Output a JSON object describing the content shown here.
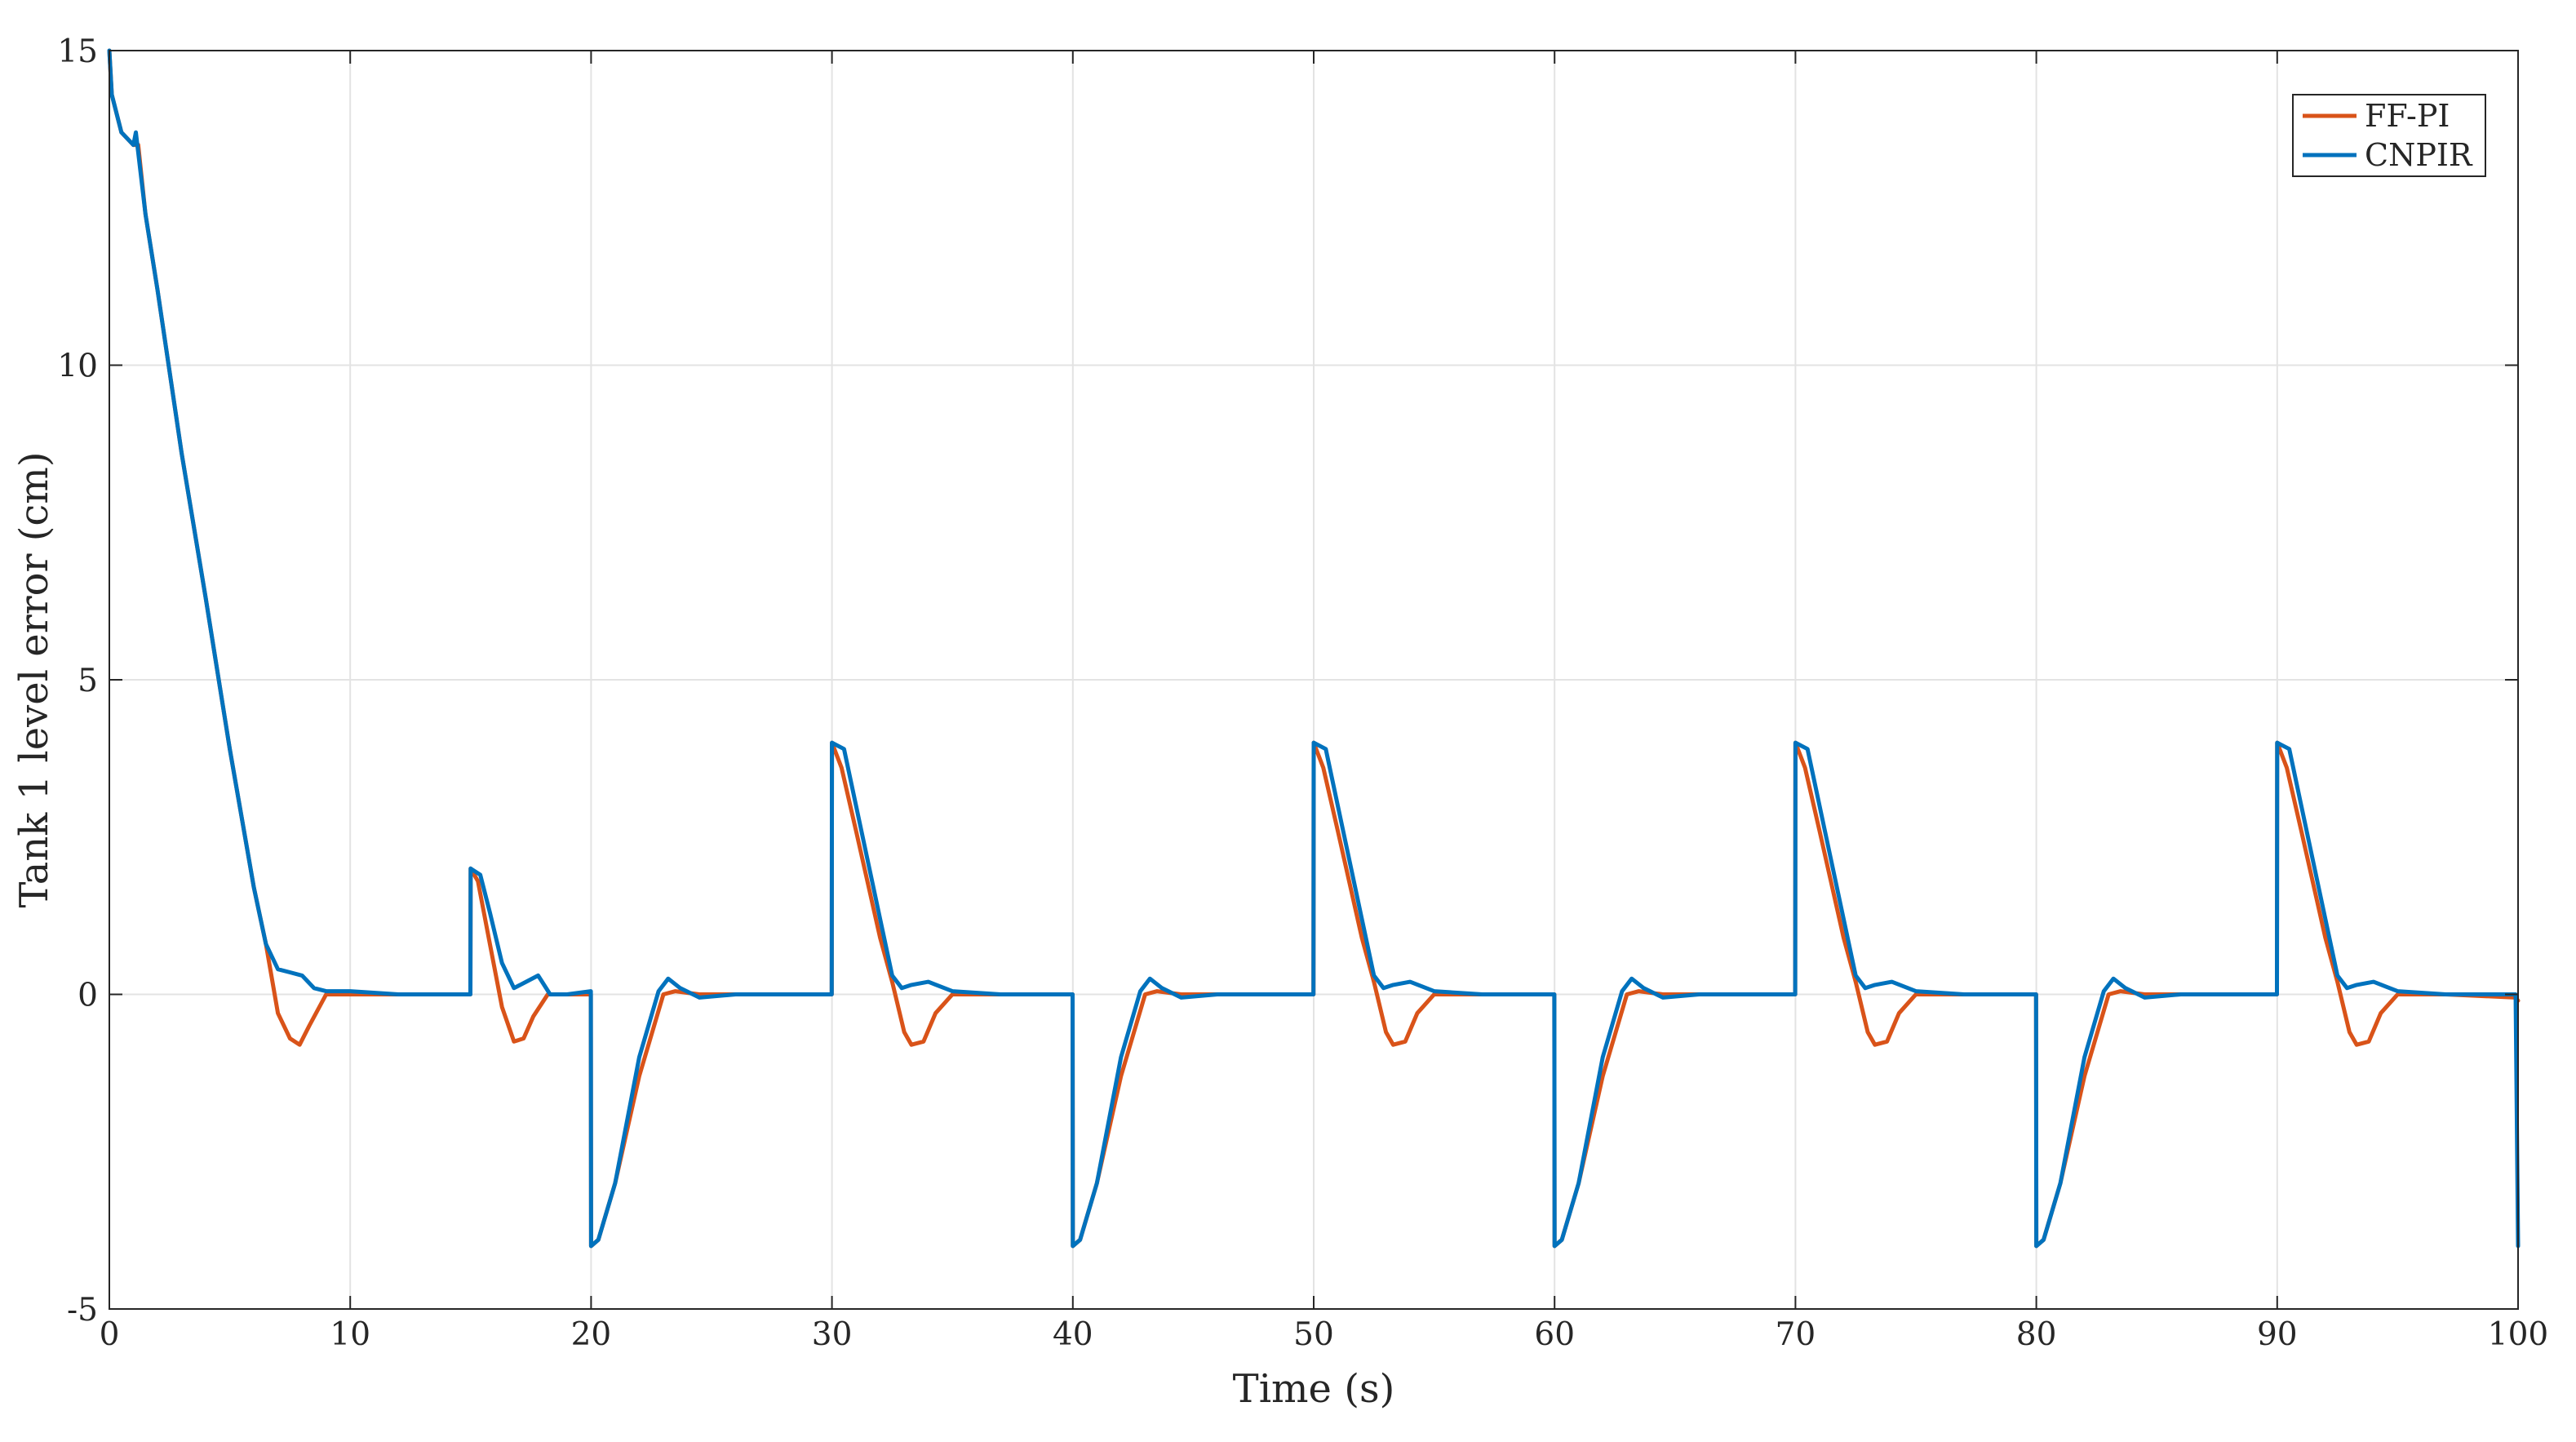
{
  "chart_data": {
    "type": "line",
    "title": "",
    "xlabel": "Time (s)",
    "ylabel": "Tank 1 level error (cm)",
    "xlim": [
      0,
      100
    ],
    "ylim": [
      -5,
      15
    ],
    "xticks": [
      0,
      10,
      20,
      30,
      40,
      50,
      60,
      70,
      80,
      90,
      100
    ],
    "yticks": [
      -5,
      0,
      5,
      10,
      15
    ],
    "grid": true,
    "legend_position": "top-right",
    "series": [
      {
        "name": "FF-PI",
        "color": "#d95319",
        "x": [
          0,
          0.1,
          0.5,
          1.0,
          1.2,
          1.5,
          2.0,
          3.0,
          4.0,
          5.0,
          6.0,
          6.5,
          7.0,
          7.5,
          7.9,
          8.3,
          9.0,
          10,
          12,
          14,
          14.99,
          15.0,
          15.3,
          15.8,
          16.3,
          16.8,
          17.2,
          17.6,
          18.2,
          19,
          19.99,
          20.0,
          20.3,
          21,
          22,
          23,
          23.5,
          24.5,
          26,
          28,
          29.99,
          30.0,
          30.4,
          31.0,
          32.0,
          32.5,
          33.0,
          33.3,
          33.8,
          34.3,
          35,
          37,
          39.99,
          40.0,
          40.3,
          41,
          42,
          43,
          43.5,
          44.5,
          46,
          48,
          49.99,
          50.0,
          50.4,
          51.0,
          52.0,
          52.5,
          53.0,
          53.3,
          53.8,
          54.3,
          55,
          57,
          59.99,
          60.0,
          60.3,
          61,
          62,
          63,
          63.5,
          64.5,
          66,
          68,
          69.99,
          70.0,
          70.4,
          71.0,
          72.0,
          72.5,
          73.0,
          73.3,
          73.8,
          74.3,
          75,
          77,
          79.99,
          80.0,
          80.3,
          81,
          82,
          83,
          83.5,
          84.5,
          86,
          88,
          89.99,
          90.0,
          90.4,
          91.0,
          92.0,
          92.5,
          93.0,
          93.3,
          93.8,
          94.3,
          95,
          97,
          99.9,
          100
        ],
        "y": [
          15,
          14.3,
          13.7,
          13.5,
          13.5,
          12.4,
          11.2,
          8.6,
          6.3,
          3.9,
          1.7,
          0.8,
          -0.3,
          -0.7,
          -0.8,
          -0.5,
          0.0,
          0.0,
          0.0,
          0.0,
          0.0,
          2.0,
          1.8,
          0.8,
          -0.2,
          -0.75,
          -0.7,
          -0.35,
          0.0,
          0.0,
          0.0,
          -4.0,
          -3.9,
          -3.0,
          -1.3,
          0.0,
          0.05,
          0.0,
          0.0,
          0.0,
          0.0,
          4.0,
          3.6,
          2.6,
          0.9,
          0.2,
          -0.6,
          -0.8,
          -0.75,
          -0.3,
          0.0,
          0.0,
          0.0,
          -4.0,
          -3.9,
          -3.0,
          -1.3,
          0.0,
          0.05,
          0.0,
          0.0,
          0.0,
          0.0,
          4.0,
          3.6,
          2.6,
          0.9,
          0.2,
          -0.6,
          -0.8,
          -0.75,
          -0.3,
          0.0,
          0.0,
          0.0,
          -4.0,
          -3.9,
          -3.0,
          -1.3,
          0.0,
          0.05,
          0.0,
          0.0,
          0.0,
          0.0,
          4.0,
          3.6,
          2.6,
          0.9,
          0.2,
          -0.6,
          -0.8,
          -0.75,
          -0.3,
          0.0,
          0.0,
          0.0,
          -4.0,
          -3.9,
          -3.0,
          -1.3,
          0.0,
          0.05,
          0.0,
          0.0,
          0.0,
          0.0,
          4.0,
          3.6,
          2.6,
          0.9,
          0.2,
          -0.6,
          -0.8,
          -0.75,
          -0.3,
          0.0,
          0.0,
          -0.05,
          -0.1
        ]
      },
      {
        "name": "CNPIR",
        "color": "#0072bd",
        "x": [
          0,
          0.1,
          0.5,
          1.0,
          1.1,
          1.5,
          2.0,
          3.0,
          4.0,
          5.0,
          6.0,
          6.5,
          7.0,
          7.5,
          8.0,
          8.5,
          9.0,
          10,
          12,
          14,
          14.99,
          15.0,
          15.4,
          15.8,
          16.3,
          16.8,
          17.3,
          17.8,
          18.3,
          19,
          19.99,
          20.0,
          20.3,
          21,
          22,
          22.8,
          23.2,
          23.7,
          24.5,
          26,
          28,
          29.99,
          30.0,
          30.5,
          31.0,
          32.0,
          32.5,
          32.9,
          33.3,
          34,
          35,
          37,
          39.99,
          40.0,
          40.3,
          41,
          42,
          42.8,
          43.2,
          43.7,
          44.5,
          46,
          48,
          49.99,
          50.0,
          50.5,
          51.0,
          52.0,
          52.5,
          52.9,
          53.3,
          54,
          55,
          57,
          59.99,
          60.0,
          60.3,
          61,
          62,
          62.8,
          63.2,
          63.7,
          64.5,
          66,
          68,
          69.99,
          70.0,
          70.5,
          71.0,
          72.0,
          72.5,
          72.9,
          73.3,
          74,
          75,
          77,
          79.99,
          80.0,
          80.3,
          81,
          82,
          82.8,
          83.2,
          83.7,
          84.5,
          86,
          88,
          89.99,
          90.0,
          90.5,
          91.0,
          92.0,
          92.5,
          92.9,
          93.3,
          94,
          95,
          97,
          99.9,
          100
        ],
        "y": [
          15,
          14.3,
          13.7,
          13.5,
          13.7,
          12.4,
          11.2,
          8.6,
          6.3,
          3.9,
          1.7,
          0.8,
          0.4,
          0.35,
          0.3,
          0.1,
          0.05,
          0.05,
          0.0,
          0.0,
          0.0,
          2.0,
          1.9,
          1.3,
          0.5,
          0.1,
          0.2,
          0.3,
          0.0,
          0.0,
          0.05,
          -4.0,
          -3.9,
          -3.0,
          -1.0,
          0.05,
          0.25,
          0.1,
          -0.05,
          0.0,
          0.0,
          0.0,
          4.0,
          3.9,
          3.0,
          1.2,
          0.3,
          0.1,
          0.15,
          0.2,
          0.05,
          0.0,
          0.0,
          -4.0,
          -3.9,
          -3.0,
          -1.0,
          0.05,
          0.25,
          0.1,
          -0.05,
          0.0,
          0.0,
          0.0,
          4.0,
          3.9,
          3.0,
          1.2,
          0.3,
          0.1,
          0.15,
          0.2,
          0.05,
          0.0,
          0.0,
          -4.0,
          -3.9,
          -3.0,
          -1.0,
          0.05,
          0.25,
          0.1,
          -0.05,
          0.0,
          0.0,
          0.0,
          4.0,
          3.9,
          3.0,
          1.2,
          0.3,
          0.1,
          0.15,
          0.2,
          0.05,
          0.0,
          0.0,
          -4.0,
          -3.9,
          -3.0,
          -1.0,
          0.05,
          0.25,
          0.1,
          -0.05,
          0.0,
          0.0,
          0.0,
          4.0,
          3.9,
          3.0,
          1.2,
          0.3,
          0.1,
          0.15,
          0.2,
          0.05,
          0.0,
          0.0,
          -4.0
        ]
      }
    ]
  }
}
